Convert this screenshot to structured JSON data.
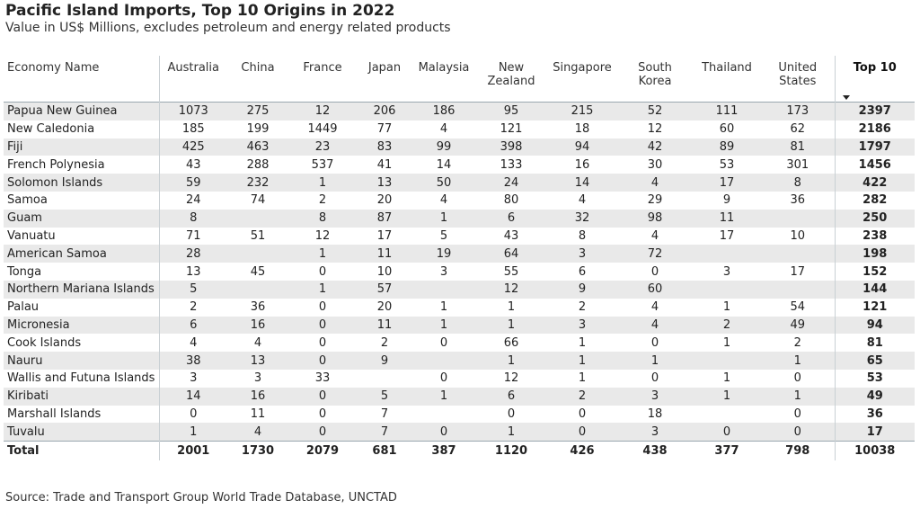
{
  "title": "Pacific Island Imports, Top 10 Origins in 2022",
  "subtitle": "Value in US$ Millions, excludes petroleum and energy related products",
  "source": "Source: Trade and Transport Group World Trade Database, UNCTAD",
  "chart_data": {
    "type": "table",
    "title": "Pacific Island Imports, Top 10 Origins in 2022",
    "subtitle": "Value in US$ Millions, excludes petroleum and energy related products",
    "columns": [
      "Economy Name",
      "Australia",
      "China",
      "France",
      "Japan",
      "Malaysia",
      "New Zealand",
      "Singapore",
      "South Korea",
      "Thailand",
      "United States",
      "Top 10"
    ],
    "sorted_column": "Top 10",
    "rows": [
      [
        "Papua New Guinea",
        "1073",
        "275",
        "12",
        "206",
        "186",
        "95",
        "215",
        "52",
        "111",
        "173",
        "2397"
      ],
      [
        "New Caledonia",
        "185",
        "199",
        "1449",
        "77",
        "4",
        "121",
        "18",
        "12",
        "60",
        "62",
        "2186"
      ],
      [
        "Fiji",
        "425",
        "463",
        "23",
        "83",
        "99",
        "398",
        "94",
        "42",
        "89",
        "81",
        "1797"
      ],
      [
        "French Polynesia",
        "43",
        "288",
        "537",
        "41",
        "14",
        "133",
        "16",
        "30",
        "53",
        "301",
        "1456"
      ],
      [
        "Solomon Islands",
        "59",
        "232",
        "1",
        "13",
        "50",
        "24",
        "14",
        "4",
        "17",
        "8",
        "422"
      ],
      [
        "Samoa",
        "24",
        "74",
        "2",
        "20",
        "4",
        "80",
        "4",
        "29",
        "9",
        "36",
        "282"
      ],
      [
        "Guam",
        "8",
        "",
        "8",
        "87",
        "1",
        "6",
        "32",
        "98",
        "11",
        "",
        "250"
      ],
      [
        "Vanuatu",
        "71",
        "51",
        "12",
        "17",
        "5",
        "43",
        "8",
        "4",
        "17",
        "10",
        "238"
      ],
      [
        "American Samoa",
        "28",
        "",
        "1",
        "11",
        "19",
        "64",
        "3",
        "72",
        "",
        "",
        "198"
      ],
      [
        "Tonga",
        "13",
        "45",
        "0",
        "10",
        "3",
        "55",
        "6",
        "0",
        "3",
        "17",
        "152"
      ],
      [
        "Northern Mariana Islands",
        "5",
        "",
        "1",
        "57",
        "",
        "12",
        "9",
        "60",
        "",
        "",
        "144"
      ],
      [
        "Palau",
        "2",
        "36",
        "0",
        "20",
        "1",
        "1",
        "2",
        "4",
        "1",
        "54",
        "121"
      ],
      [
        "Micronesia",
        "6",
        "16",
        "0",
        "11",
        "1",
        "1",
        "3",
        "4",
        "2",
        "49",
        "94"
      ],
      [
        "Cook Islands",
        "4",
        "4",
        "0",
        "2",
        "0",
        "66",
        "1",
        "0",
        "1",
        "2",
        "81"
      ],
      [
        "Nauru",
        "38",
        "13",
        "0",
        "9",
        "",
        "1",
        "1",
        "1",
        "",
        "1",
        "65"
      ],
      [
        "Wallis and Futuna Islands",
        "3",
        "3",
        "33",
        "",
        "0",
        "12",
        "1",
        "0",
        "1",
        "0",
        "53"
      ],
      [
        "Kiribati",
        "14",
        "16",
        "0",
        "5",
        "1",
        "6",
        "2",
        "3",
        "1",
        "1",
        "49"
      ],
      [
        "Marshall Islands",
        "0",
        "11",
        "0",
        "7",
        "",
        "0",
        "0",
        "18",
        "",
        "0",
        "36"
      ],
      [
        "Tuvalu",
        "1",
        "4",
        "0",
        "7",
        "0",
        "1",
        "0",
        "3",
        "0",
        "0",
        "17"
      ]
    ],
    "totals": [
      "Total",
      "2001",
      "1730",
      "2079",
      "681",
      "387",
      "1120",
      "426",
      "438",
      "377",
      "798",
      "10038"
    ]
  }
}
